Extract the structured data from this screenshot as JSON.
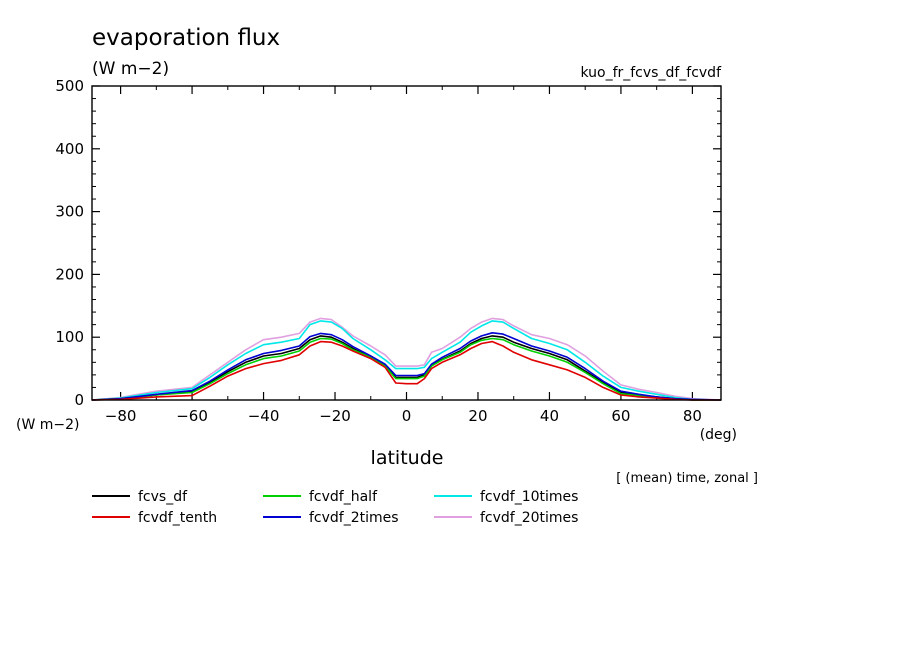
{
  "header": {
    "title": "evaporation flux",
    "units": "(W m−2)",
    "run_name": "kuo_fr_fcvs_df_fcvdf"
  },
  "footer": {
    "y_units": "(W m−2)",
    "x_units": "(deg)",
    "note": "[ (mean) time, zonal ]"
  },
  "colors": {
    "fcvs_df": "#000000",
    "fcvdf_tenth": "#e00000",
    "fcvdf_half": "#00d000",
    "fcvdf_2times": "#0000d0",
    "fcvdf_10times": "#00e8e8",
    "fcvdf_20times": "#e0a0e0"
  },
  "chart_data": {
    "type": "line",
    "title": "evaporation flux",
    "xlabel": "latitude",
    "ylabel": "(W m−2)",
    "xlim": [
      -88,
      88
    ],
    "ylim": [
      0,
      500
    ],
    "xticks": [
      -80,
      -60,
      -40,
      -20,
      0,
      20,
      40,
      60,
      80
    ],
    "yticks": [
      0,
      100,
      200,
      300,
      400,
      500
    ],
    "grid": false,
    "legend_position": "below",
    "x": [
      -88,
      -80,
      -70,
      -60,
      -55,
      -50,
      -45,
      -40,
      -35,
      -30,
      -27,
      -24,
      -21,
      -18,
      -15,
      -10,
      -6,
      -3,
      0,
      3,
      5,
      7,
      10,
      15,
      18,
      21,
      24,
      27,
      30,
      35,
      40,
      45,
      50,
      55,
      60,
      65,
      70,
      75,
      80,
      88
    ],
    "series": [
      {
        "name": "fcvs_df",
        "color": "#000000",
        "values": [
          0,
          2,
          8,
          14,
          28,
          45,
          60,
          70,
          74,
          82,
          96,
          102,
          100,
          92,
          82,
          68,
          55,
          36,
          36,
          36,
          40,
          55,
          65,
          78,
          90,
          98,
          102,
          100,
          92,
          82,
          74,
          64,
          46,
          28,
          12,
          8,
          5,
          2,
          0,
          0
        ]
      },
      {
        "name": "fcvdf_tenth",
        "color": "#e00000",
        "values": [
          0,
          1,
          5,
          7,
          22,
          38,
          50,
          58,
          63,
          72,
          86,
          93,
          92,
          86,
          78,
          66,
          52,
          27,
          26,
          26,
          34,
          50,
          60,
          72,
          82,
          90,
          93,
          86,
          76,
          64,
          56,
          48,
          36,
          20,
          8,
          5,
          3,
          1,
          0,
          0
        ]
      },
      {
        "name": "fcvdf_half",
        "color": "#00d000",
        "values": [
          0,
          2,
          8,
          12,
          26,
          42,
          56,
          66,
          70,
          78,
          92,
          98,
          97,
          90,
          80,
          68,
          54,
          34,
          34,
          34,
          38,
          54,
          64,
          76,
          88,
          95,
          98,
          96,
          88,
          78,
          70,
          60,
          44,
          26,
          10,
          7,
          4,
          2,
          0,
          0
        ]
      },
      {
        "name": "fcvdf_2times",
        "color": "#0000d0",
        "values": [
          0,
          2,
          9,
          15,
          30,
          48,
          64,
          74,
          79,
          86,
          101,
          106,
          104,
          96,
          85,
          70,
          57,
          39,
          39,
          39,
          42,
          57,
          68,
          82,
          94,
          102,
          107,
          105,
          98,
          86,
          78,
          68,
          50,
          30,
          14,
          9,
          5,
          2,
          1,
          0
        ]
      },
      {
        "name": "fcvdf_10times",
        "color": "#00e8e8",
        "values": [
          0,
          3,
          12,
          18,
          36,
          56,
          74,
          88,
          92,
          98,
          120,
          126,
          124,
          114,
          98,
          80,
          64,
          50,
          50,
          50,
          52,
          66,
          76,
          92,
          108,
          118,
          126,
          124,
          114,
          98,
          90,
          80,
          60,
          38,
          20,
          14,
          9,
          4,
          1,
          0
        ]
      },
      {
        "name": "fcvdf_20times",
        "color": "#e0a0e0",
        "values": [
          0,
          4,
          14,
          20,
          40,
          60,
          80,
          96,
          100,
          106,
          124,
          130,
          128,
          116,
          102,
          86,
          72,
          54,
          54,
          54,
          56,
          76,
          82,
          100,
          114,
          124,
          130,
          128,
          118,
          104,
          98,
          88,
          70,
          46,
          24,
          17,
          12,
          6,
          2,
          0
        ]
      }
    ]
  }
}
